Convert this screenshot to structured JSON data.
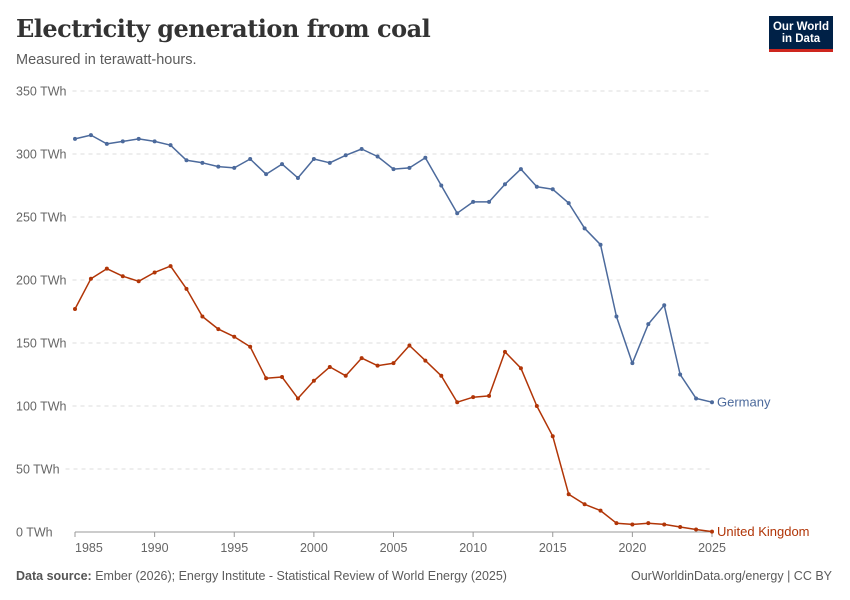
{
  "header": {
    "title": "Electricity generation from coal",
    "subtitle": "Measured in terawatt-hours.",
    "logo_line1": "Our World",
    "logo_line2": "in Data"
  },
  "footer": {
    "source_label": "Data source:",
    "source_text": "Ember (2026); Energy Institute - Statistical Review of World Energy (2025)",
    "right_text": "OurWorldinData.org/energy | CC BY"
  },
  "chart_data": {
    "type": "line",
    "title": "Electricity generation from coal",
    "subtitle": "Measured in terawatt-hours.",
    "x": [
      1985,
      1986,
      1987,
      1988,
      1989,
      1990,
      1991,
      1992,
      1993,
      1994,
      1995,
      1996,
      1997,
      1998,
      1999,
      2000,
      2001,
      2002,
      2003,
      2004,
      2005,
      2006,
      2007,
      2008,
      2009,
      2010,
      2011,
      2012,
      2013,
      2014,
      2015,
      2016,
      2017,
      2018,
      2019,
      2020,
      2021,
      2022,
      2023,
      2024,
      2025
    ],
    "xlim": [
      1985,
      2025
    ],
    "x_ticks": [
      "1985",
      "1990",
      "1995",
      "2000",
      "2005",
      "2010",
      "2015",
      "2020",
      "2025"
    ],
    "ylim": [
      0,
      350
    ],
    "y_ticks": [
      "0 TWh",
      "50 TWh",
      "100 TWh",
      "150 TWh",
      "200 TWh",
      "250 TWh",
      "300 TWh",
      "350 TWh"
    ],
    "grid": "horizontal dashed",
    "legend": "inline labels at line ends",
    "series": [
      {
        "name": "Germany",
        "color": "#4c6a9c",
        "values": [
          312,
          315,
          308,
          310,
          312,
          310,
          307,
          295,
          293,
          290,
          289,
          296,
          284,
          292,
          281,
          296,
          293,
          299,
          304,
          298,
          288,
          289,
          297,
          275,
          253,
          262,
          262,
          276,
          288,
          274,
          272,
          261,
          241,
          228,
          171,
          134,
          165,
          180,
          125,
          106,
          103
        ]
      },
      {
        "name": "United Kingdom",
        "color": "#b13507",
        "values": [
          177,
          201,
          209,
          203,
          199,
          206,
          211,
          193,
          171,
          161,
          155,
          147,
          122,
          123,
          106,
          120,
          131,
          124,
          138,
          132,
          134,
          148,
          136,
          124,
          103,
          107,
          108,
          143,
          130,
          100,
          76,
          30,
          22,
          17,
          7,
          6,
          7,
          6,
          4,
          2,
          0.3
        ]
      }
    ]
  }
}
